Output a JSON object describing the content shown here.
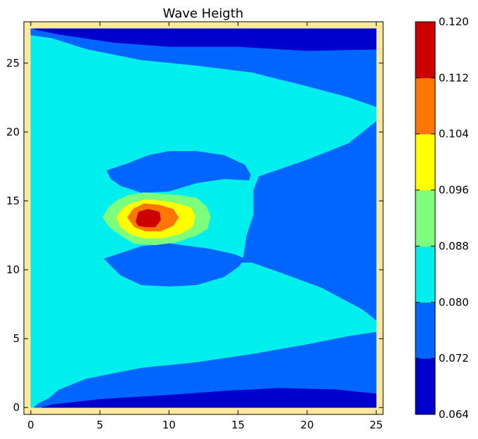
{
  "chart_data": {
    "type": "heatmap",
    "subtype": "filled-contour",
    "title": "Wave Heigth",
    "xlabel": "",
    "ylabel": "",
    "xlim": [
      -0.5,
      25.5
    ],
    "ylim": [
      -0.5,
      28
    ],
    "xticks": [
      0,
      5,
      10,
      15,
      20,
      25
    ],
    "yticks": [
      0,
      5,
      10,
      15,
      20,
      25
    ],
    "grid": false,
    "background_color": "#ffe99e",
    "colorbar": {
      "levels": [
        0.064,
        0.072,
        0.08,
        0.088,
        0.096,
        0.104,
        0.112,
        0.12
      ],
      "tick_labels": [
        "0.064",
        "0.072",
        "0.080",
        "0.088",
        "0.096",
        "0.104",
        "0.112",
        "0.120"
      ],
      "colors": [
        "#0000cd",
        "#0066ff",
        "#00eeee",
        "#7dff7d",
        "#ffff00",
        "#ff7700",
        "#cc0000"
      ],
      "placement": "right"
    },
    "regions": [
      {
        "band": [
          0.072,
          0.08
        ],
        "color": "#0066ff",
        "outline": [
          [
            0,
            27.5
          ],
          [
            25,
            27.5
          ],
          [
            25,
            0
          ],
          [
            0,
            0
          ]
        ]
      },
      {
        "band": [
          0.064,
          0.072
        ],
        "color": "#0000cd",
        "outline": [
          [
            0.2,
            27.5
          ],
          [
            25,
            27.5
          ],
          [
            25,
            26
          ],
          [
            20,
            25.9
          ],
          [
            15,
            26.2
          ],
          [
            10,
            26.2
          ],
          [
            6,
            26.5
          ],
          [
            2,
            27.1
          ],
          [
            0.5,
            27.4
          ]
        ]
      },
      {
        "band": [
          0.064,
          0.072
        ],
        "color": "#0000cd",
        "outline": [
          [
            0.8,
            0
          ],
          [
            25,
            0
          ],
          [
            25,
            1
          ],
          [
            22,
            1.3
          ],
          [
            18,
            1.4
          ],
          [
            14,
            1.2
          ],
          [
            10,
            0.9
          ],
          [
            5,
            0.6
          ],
          [
            1.5,
            0.2
          ]
        ]
      },
      {
        "band": [
          0.08,
          0.088
        ],
        "color": "#00eeee",
        "outline": [
          [
            0,
            27
          ],
          [
            1.5,
            26.8
          ],
          [
            4,
            26
          ],
          [
            8,
            25.2
          ],
          [
            12,
            24.8
          ],
          [
            16,
            24.3
          ],
          [
            20,
            23.3
          ],
          [
            23,
            22.5
          ],
          [
            25,
            21.8
          ],
          [
            25,
            20.8
          ],
          [
            23,
            19.2
          ],
          [
            20,
            18
          ],
          [
            16.5,
            16.8
          ],
          [
            16.1,
            15.8
          ],
          [
            16.1,
            14
          ],
          [
            15.6,
            12.5
          ],
          [
            15.3,
            10.5
          ],
          [
            16,
            10.5
          ],
          [
            18,
            9.8
          ],
          [
            21,
            8.7
          ],
          [
            24,
            7.1
          ],
          [
            25,
            6.3
          ],
          [
            25,
            5.5
          ],
          [
            23,
            5.2
          ],
          [
            20,
            4.6
          ],
          [
            16,
            3.9
          ],
          [
            12,
            3.3
          ],
          [
            8,
            2.9
          ],
          [
            4,
            2.1
          ],
          [
            2,
            1.3
          ],
          [
            1.3,
            0.7
          ],
          [
            0.5,
            0.3
          ],
          [
            0.2,
            0
          ],
          [
            0,
            0
          ]
        ]
      },
      {
        "band": [
          0.072,
          0.08
        ],
        "color": "#0066ff",
        "outline": [
          [
            5.5,
            17.2
          ],
          [
            7,
            17.7
          ],
          [
            8.5,
            18.3
          ],
          [
            10,
            18.6
          ],
          [
            12,
            18.6
          ],
          [
            14,
            18.3
          ],
          [
            15.5,
            17.6
          ],
          [
            15.9,
            16.9
          ],
          [
            15.8,
            16.5
          ],
          [
            14,
            16.6
          ],
          [
            12,
            16.3
          ],
          [
            10,
            15.7
          ],
          [
            8,
            15.6
          ],
          [
            6.5,
            16.1
          ],
          [
            5.8,
            16.6
          ]
        ]
      },
      {
        "band": [
          0.072,
          0.08
        ],
        "color": "#0066ff",
        "outline": [
          [
            5.3,
            10.8
          ],
          [
            6.5,
            9.6
          ],
          [
            8,
            8.9
          ],
          [
            10,
            8.8
          ],
          [
            12,
            8.9
          ],
          [
            14,
            9.5
          ],
          [
            15,
            10.2
          ],
          [
            15.5,
            10.8
          ],
          [
            14.8,
            11.1
          ],
          [
            13,
            11.5
          ],
          [
            10,
            11.9
          ],
          [
            8,
            11.7
          ],
          [
            6.5,
            11.2
          ]
        ]
      },
      {
        "band": [
          0.088,
          0.096
        ],
        "color": "#7dff7d",
        "outline": [
          [
            5.2,
            13.8
          ],
          [
            5.6,
            14.5
          ],
          [
            6.2,
            15
          ],
          [
            7,
            15.4
          ],
          [
            8.2,
            15.6
          ],
          [
            9.5,
            15.5
          ],
          [
            10.8,
            15.4
          ],
          [
            12,
            15.2
          ],
          [
            12.7,
            14.6
          ],
          [
            13,
            13.9
          ],
          [
            12.8,
            13
          ],
          [
            12,
            12.5
          ],
          [
            10.5,
            12
          ],
          [
            9,
            11.8
          ],
          [
            7.5,
            11.9
          ],
          [
            6.5,
            12.5
          ],
          [
            5.7,
            13.1
          ]
        ]
      },
      {
        "band": [
          0.096,
          0.104
        ],
        "color": "#ffff00",
        "outline": [
          [
            6.2,
            13.8
          ],
          [
            6.6,
            14.4
          ],
          [
            7.2,
            14.8
          ],
          [
            8.3,
            15.1
          ],
          [
            9.5,
            15
          ],
          [
            10.7,
            14.8
          ],
          [
            11.6,
            14.5
          ],
          [
            11.9,
            13.9
          ],
          [
            11.7,
            13.1
          ],
          [
            10.8,
            12.6
          ],
          [
            9.5,
            12.3
          ],
          [
            8.2,
            12.3
          ],
          [
            7.2,
            12.6
          ],
          [
            6.5,
            13.1
          ]
        ]
      },
      {
        "band": [
          0.104,
          0.112
        ],
        "color": "#ff7700",
        "outline": [
          [
            7,
            13.8
          ],
          [
            7.4,
            14.4
          ],
          [
            8.2,
            14.8
          ],
          [
            9.3,
            14.7
          ],
          [
            10.3,
            14.4
          ],
          [
            10.7,
            13.8
          ],
          [
            10.3,
            13.2
          ],
          [
            9.4,
            12.8
          ],
          [
            8.3,
            12.8
          ],
          [
            7.5,
            13.1
          ]
        ]
      },
      {
        "band": [
          0.112,
          0.12
        ],
        "color": "#cc0000",
        "outline": [
          [
            7.6,
            13.5
          ],
          [
            7.8,
            14.2
          ],
          [
            8.5,
            14.4
          ],
          [
            9.3,
            14.2
          ],
          [
            9.4,
            13.6
          ],
          [
            9,
            13.1
          ],
          [
            8.3,
            13.1
          ],
          [
            7.8,
            13.2
          ]
        ]
      }
    ]
  }
}
